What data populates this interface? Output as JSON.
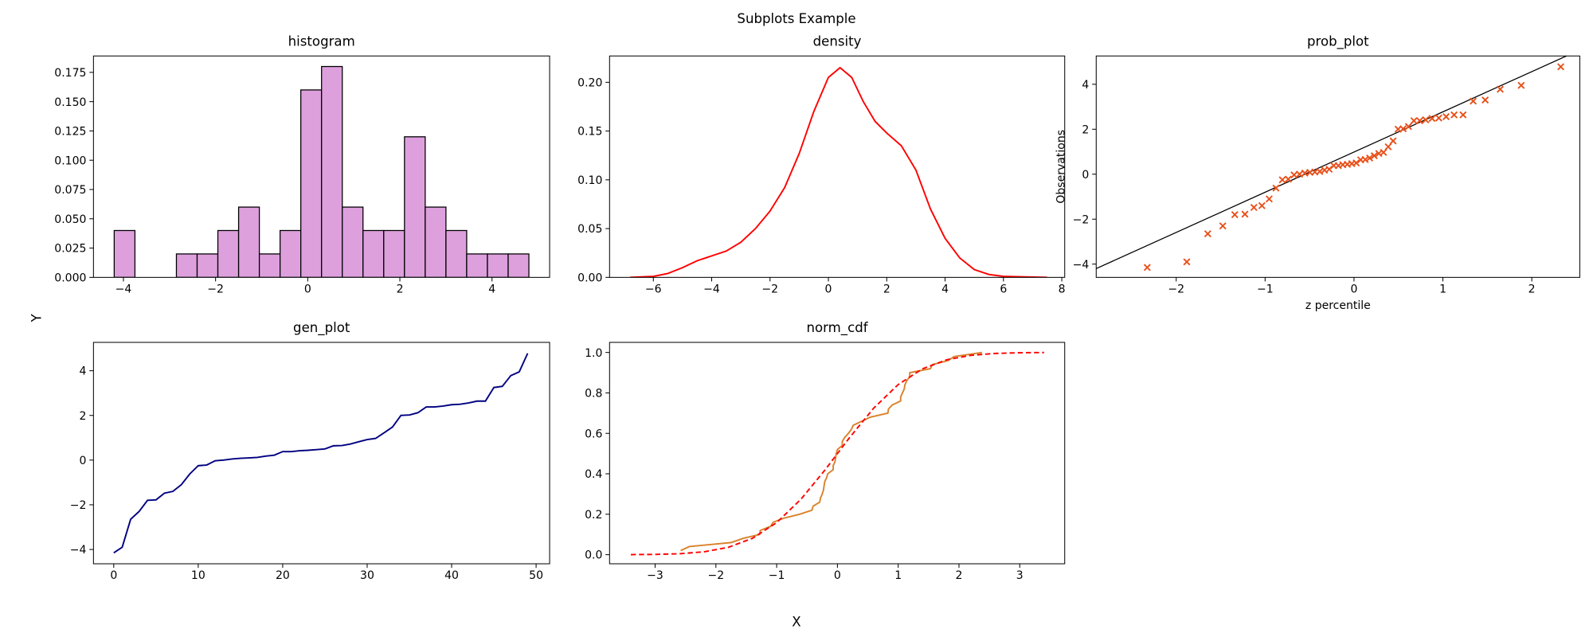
{
  "figure": {
    "title": "Subplots Example",
    "xlabel": "X",
    "ylabel": "Y"
  },
  "chart_data": [
    {
      "type": "histogram",
      "title": "histogram",
      "bins": [
        -4.2,
        -3.75,
        -3.3,
        -2.85,
        -2.4,
        -1.95,
        -1.5,
        -1.05,
        -0.6,
        -0.15,
        0.3,
        0.75,
        1.2,
        1.65,
        2.1,
        2.55,
        3.0,
        3.45,
        3.9,
        4.35,
        4.8
      ],
      "values": [
        0.04,
        0,
        0,
        0.02,
        0.02,
        0.04,
        0.06,
        0.02,
        0.04,
        0.16,
        0.18,
        0.06,
        0.04,
        0.04,
        0.12,
        0.06,
        0.04,
        0.02,
        0.02,
        0.02
      ],
      "color": "#dda0dd",
      "edgecolor": "#000000",
      "xlim": [
        -4.65,
        5.25
      ],
      "ylim": [
        0,
        0.189
      ],
      "xticks": [
        {
          "value": -4,
          "label": "−4"
        },
        {
          "value": -2,
          "label": "−2"
        },
        0,
        2,
        4
      ],
      "yticks": [
        {
          "value": 0,
          "label": "0.000"
        },
        {
          "value": 0.025,
          "label": "0.025"
        },
        {
          "value": 0.05,
          "label": "0.050"
        },
        {
          "value": 0.075,
          "label": "0.075"
        },
        {
          "value": 0.1,
          "label": "0.100"
        },
        {
          "value": 0.125,
          "label": "0.125"
        },
        {
          "value": 0.15,
          "label": "0.150"
        },
        {
          "value": 0.175,
          "label": "0.175"
        }
      ]
    },
    {
      "type": "line",
      "title": "density",
      "x": [
        -6.8,
        -6,
        -5.5,
        -5,
        -4.5,
        -4,
        -3.5,
        -3,
        -2.5,
        -2,
        -1.5,
        -1,
        -0.5,
        0,
        0.4,
        0.8,
        1.2,
        1.6,
        2,
        2.5,
        3,
        3.5,
        4,
        4.5,
        5,
        5.5,
        6,
        7.5
      ],
      "values": [
        0,
        0.001,
        0.004,
        0.01,
        0.017,
        0.022,
        0.027,
        0.036,
        0.05,
        0.068,
        0.092,
        0.127,
        0.17,
        0.205,
        0.215,
        0.205,
        0.18,
        0.16,
        0.148,
        0.135,
        0.11,
        0.07,
        0.04,
        0.02,
        0.008,
        0.003,
        0.001,
        0
      ],
      "color": "#ff0000",
      "xlim": [
        -7.5,
        8.1
      ],
      "ylim": [
        0,
        0.227
      ],
      "xticks": [
        {
          "value": -6,
          "label": "−6"
        },
        {
          "value": -4,
          "label": "−4"
        },
        {
          "value": -2,
          "label": "−2"
        },
        0,
        2,
        4,
        6,
        8
      ],
      "yticks": [
        {
          "value": 0,
          "label": "0.00"
        },
        {
          "value": 0.05,
          "label": "0.05"
        },
        {
          "value": 0.1,
          "label": "0.10"
        },
        {
          "value": 0.15,
          "label": "0.15"
        },
        {
          "value": 0.2,
          "label": "0.20"
        }
      ]
    },
    {
      "type": "probplot",
      "title": "prob_plot",
      "xlabel": "z percentile",
      "ylabel": "Observations",
      "x": [
        -2.326,
        -1.881,
        -1.645,
        -1.476,
        -1.341,
        -1.227,
        -1.126,
        -1.036,
        -0.954,
        -0.878,
        -0.806,
        -0.739,
        -0.674,
        -0.613,
        -0.553,
        -0.496,
        -0.44,
        -0.385,
        -0.332,
        -0.279,
        -0.228,
        -0.176,
        -0.126,
        -0.075,
        -0.025,
        0.025,
        0.075,
        0.126,
        0.176,
        0.228,
        0.279,
        0.332,
        0.385,
        0.44,
        0.496,
        0.553,
        0.613,
        0.674,
        0.739,
        0.806,
        0.878,
        0.954,
        1.036,
        1.126,
        1.227,
        1.341,
        1.476,
        1.645,
        1.881,
        2.326
      ],
      "values": [
        -4.15,
        -3.9,
        -2.65,
        -2.3,
        -1.8,
        -1.78,
        -1.48,
        -1.4,
        -1.1,
        -0.62,
        -0.25,
        -0.22,
        -0.03,
        0,
        0.05,
        0.08,
        0.1,
        0.12,
        0.18,
        0.22,
        0.38,
        0.38,
        0.42,
        0.44,
        0.47,
        0.5,
        0.64,
        0.65,
        0.72,
        0.82,
        0.92,
        0.97,
        1.22,
        1.48,
        2.0,
        2.02,
        2.12,
        2.38,
        2.38,
        2.42,
        2.48,
        2.5,
        2.56,
        2.64,
        2.64,
        3.25,
        3.3,
        3.78,
        3.95,
        4.78
      ],
      "color": "#e8501a",
      "fit_line": {
        "x": [
          -2.9,
          2.39
        ],
        "values": [
          -4.2,
          5.26
        ],
        "color": "#000000"
      },
      "xlim": [
        -2.9,
        2.54
      ],
      "ylim": [
        -4.59,
        5.26
      ],
      "xticks": [
        {
          "value": -2,
          "label": "−2"
        },
        {
          "value": -1,
          "label": "−1"
        },
        0,
        1,
        2
      ],
      "yticks": [
        {
          "value": -4,
          "label": "−4"
        },
        {
          "value": -2,
          "label": "−2"
        },
        0,
        2,
        4
      ]
    },
    {
      "type": "line",
      "title": "gen_plot",
      "x": [
        0,
        1,
        2,
        3,
        4,
        5,
        6,
        7,
        8,
        9,
        10,
        11,
        12,
        13,
        14,
        15,
        16,
        17,
        18,
        19,
        20,
        21,
        22,
        23,
        24,
        25,
        26,
        27,
        28,
        29,
        30,
        31,
        32,
        33,
        34,
        35,
        36,
        37,
        38,
        39,
        40,
        41,
        42,
        43,
        44,
        45,
        46,
        47,
        48,
        49
      ],
      "values": [
        -4.15,
        -3.9,
        -2.65,
        -2.3,
        -1.8,
        -1.78,
        -1.48,
        -1.4,
        -1.1,
        -0.62,
        -0.25,
        -0.22,
        -0.03,
        0,
        0.05,
        0.08,
        0.1,
        0.12,
        0.18,
        0.22,
        0.38,
        0.38,
        0.42,
        0.44,
        0.47,
        0.5,
        0.64,
        0.65,
        0.72,
        0.82,
        0.92,
        0.97,
        1.22,
        1.48,
        2.0,
        2.02,
        2.12,
        2.38,
        2.38,
        2.42,
        2.48,
        2.5,
        2.56,
        2.64,
        2.64,
        3.25,
        3.3,
        3.78,
        3.95,
        4.78
      ],
      "color": "#000080",
      "xlim": [
        -2.4,
        51.6
      ],
      "ylim": [
        -4.64,
        5.27
      ],
      "xticks": [
        0,
        10,
        20,
        30,
        40,
        50
      ],
      "yticks": [
        {
          "value": -4,
          "label": "−4"
        },
        {
          "value": -2,
          "label": "−2"
        },
        0,
        2,
        4
      ]
    },
    {
      "type": "line",
      "title": "norm_cdf",
      "series": [
        {
          "color": "#d9822b",
          "dashed": false,
          "x": [
            -2.58,
            -2.44,
            -1.75,
            -1.56,
            -1.28,
            -1.27,
            -1.1,
            -1.06,
            -0.89,
            -0.62,
            -0.42,
            -0.4,
            -0.29,
            -0.28,
            -0.25,
            -0.23,
            -0.22,
            -0.21,
            -0.18,
            -0.16,
            -0.07,
            -0.07,
            -0.04,
            -0.03,
            -0.02,
            0,
            0.08,
            0.08,
            0.12,
            0.18,
            0.23,
            0.26,
            0.4,
            0.54,
            0.83,
            0.84,
            0.9,
            1.04,
            1.04,
            1.07,
            1.1,
            1.11,
            1.14,
            1.19,
            1.19,
            1.53,
            1.56,
            1.82,
            1.92,
            2.38
          ],
          "values": [
            0.02,
            0.04,
            0.06,
            0.08,
            0.1,
            0.12,
            0.14,
            0.16,
            0.18,
            0.2,
            0.22,
            0.24,
            0.26,
            0.28,
            0.3,
            0.32,
            0.34,
            0.36,
            0.38,
            0.4,
            0.42,
            0.44,
            0.46,
            0.48,
            0.5,
            0.52,
            0.54,
            0.56,
            0.58,
            0.6,
            0.62,
            0.64,
            0.66,
            0.68,
            0.7,
            0.72,
            0.74,
            0.76,
            0.78,
            0.8,
            0.82,
            0.84,
            0.86,
            0.88,
            0.9,
            0.92,
            0.94,
            0.96,
            0.98,
            1.0
          ]
        },
        {
          "color": "#ff0000",
          "dashed": true,
          "x": [
            -3.4,
            -3.0,
            -2.6,
            -2.2,
            -1.8,
            -1.4,
            -1.0,
            -0.6,
            -0.2,
            0.2,
            0.6,
            1.0,
            1.4,
            1.8,
            2.2,
            2.6,
            3.0,
            3.4
          ],
          "values": [
            0.0003,
            0.0013,
            0.0047,
            0.0139,
            0.0359,
            0.0808,
            0.1587,
            0.2743,
            0.4207,
            0.5793,
            0.7257,
            0.8413,
            0.9192,
            0.9641,
            0.9861,
            0.9953,
            0.9987,
            0.9997
          ]
        }
      ],
      "xlim": [
        -3.75,
        3.74
      ],
      "ylim": [
        -0.045,
        1.05
      ],
      "xticks": [
        {
          "value": -3,
          "label": "−3"
        },
        {
          "value": -2,
          "label": "−2"
        },
        {
          "value": -1,
          "label": "−1"
        },
        0,
        1,
        2,
        3
      ],
      "yticks": [
        {
          "value": 0,
          "label": "0.0"
        },
        {
          "value": 0.2,
          "label": "0.2"
        },
        {
          "value": 0.4,
          "label": "0.4"
        },
        {
          "value": 0.6,
          "label": "0.6"
        },
        {
          "value": 0.8,
          "label": "0.8"
        },
        {
          "value": 1.0,
          "label": "1.0"
        }
      ]
    }
  ]
}
